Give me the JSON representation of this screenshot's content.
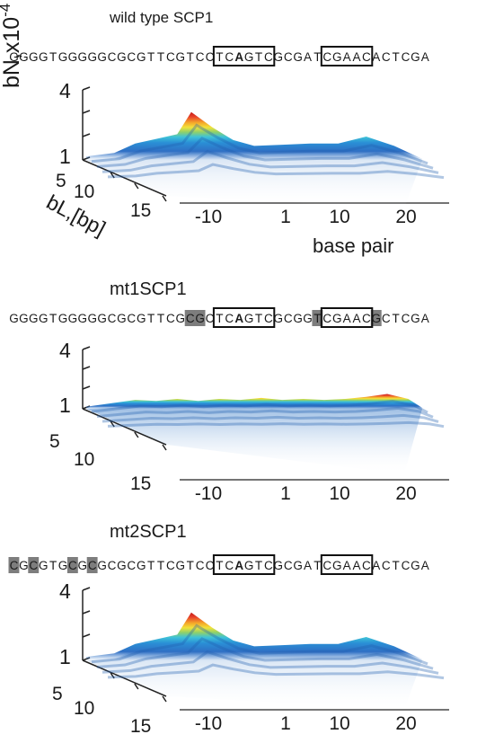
{
  "panels": [
    {
      "title": "wild type SCP1",
      "sequence": "GGGGTGGGGGCGCGTTCGTCCTCAGTCGCGATCGAACACTCGA",
      "highlight_indices": [],
      "boxes": [
        [
          21,
          26
        ],
        [
          32,
          36
        ]
      ],
      "bold_indices": [
        23
      ],
      "zlabel": "bN,x10",
      "zlabel_exp": "-4",
      "ylabel": "bL,[bp]",
      "xlabel": "base pair",
      "zticks": [
        "1",
        "4"
      ],
      "yticks": [
        "5",
        "10",
        "15"
      ],
      "xticks": [
        "-10",
        "1",
        "10",
        "20"
      ]
    },
    {
      "title": "mt1SCP1",
      "sequence": "GGGGTGGGGGCGCGTTCGCGCTCAGTCGCGGTCGAACGCTCGA",
      "highlight_indices": [
        18,
        19,
        31,
        37
      ],
      "boxes": [
        [
          21,
          26
        ],
        [
          32,
          36
        ]
      ],
      "bold_indices": [
        23
      ],
      "zlabel": "",
      "zlabel_exp": "",
      "ylabel": "",
      "xlabel": "",
      "zticks": [
        "1",
        "4"
      ],
      "yticks": [
        "5",
        "10",
        "15"
      ],
      "xticks": [
        "-10",
        "1",
        "10",
        "20"
      ]
    },
    {
      "title": "mt2SCP1",
      "sequence": "CGCGTGCGCGCGCGTTCGTCCTCAGTCGCGATCGAACACTCGA",
      "highlight_indices": [
        0,
        2,
        6,
        8
      ],
      "boxes": [
        [
          21,
          26
        ],
        [
          32,
          36
        ]
      ],
      "bold_indices": [
        23
      ],
      "zlabel": "",
      "zlabel_exp": "",
      "ylabel": "",
      "xlabel": "",
      "zticks": [
        "1",
        "4"
      ],
      "yticks": [
        "5",
        "10",
        "15"
      ],
      "xticks": [
        "-10",
        "1",
        "10",
        "20"
      ]
    }
  ],
  "chart_data": [
    {
      "type": "surface",
      "title": "wild type SCP1",
      "x_axis": "base pair",
      "y_axis": "bL,[bp]",
      "z_axis": "bN,x10-4",
      "zlim": [
        1,
        4
      ],
      "x_ticks": [
        -10,
        1,
        10,
        20
      ],
      "y_ticks": [
        5,
        10,
        15
      ],
      "profile": {
        "x": [
          -22,
          -18,
          -15,
          -12,
          -9,
          -7,
          -4,
          -1,
          2,
          6,
          10,
          14,
          18,
          22,
          26
        ],
        "z": [
          1.15,
          1.3,
          1.7,
          1.9,
          2.1,
          3.05,
          2.4,
          1.85,
          1.6,
          1.65,
          1.7,
          1.7,
          2.0,
          1.6,
          1.05
        ]
      }
    },
    {
      "type": "surface",
      "title": "mt1SCP1",
      "x_axis": "base pair",
      "y_axis": "bL,[bp]",
      "z_axis": "bN,x10-4",
      "zlim": [
        1,
        4
      ],
      "x_ticks": [
        -10,
        1,
        10,
        20
      ],
      "y_ticks": [
        5,
        10,
        15
      ],
      "profile": {
        "x": [
          -22,
          -18,
          -15,
          -12,
          -9,
          -6,
          -3,
          0,
          3,
          6,
          9,
          12,
          15,
          18,
          21,
          24,
          26
        ],
        "z": [
          1.1,
          1.3,
          1.45,
          1.4,
          1.5,
          1.4,
          1.5,
          1.45,
          1.55,
          1.45,
          1.5,
          1.45,
          1.5,
          1.6,
          1.75,
          1.5,
          1.05
        ]
      }
    },
    {
      "type": "surface",
      "title": "mt2SCP1",
      "x_axis": "base pair",
      "y_axis": "bL,[bp]",
      "z_axis": "bN,x10-4",
      "zlim": [
        1,
        4
      ],
      "x_ticks": [
        -10,
        1,
        10,
        20
      ],
      "y_ticks": [
        5,
        10,
        15
      ],
      "profile": {
        "x": [
          -22,
          -18,
          -15,
          -12,
          -9,
          -7,
          -4,
          -1,
          2,
          6,
          10,
          14,
          18,
          22,
          26
        ],
        "z": [
          1.15,
          1.3,
          1.7,
          1.9,
          2.1,
          3.05,
          2.4,
          1.85,
          1.6,
          1.65,
          1.7,
          1.7,
          2.0,
          1.6,
          1.05
        ]
      }
    }
  ]
}
